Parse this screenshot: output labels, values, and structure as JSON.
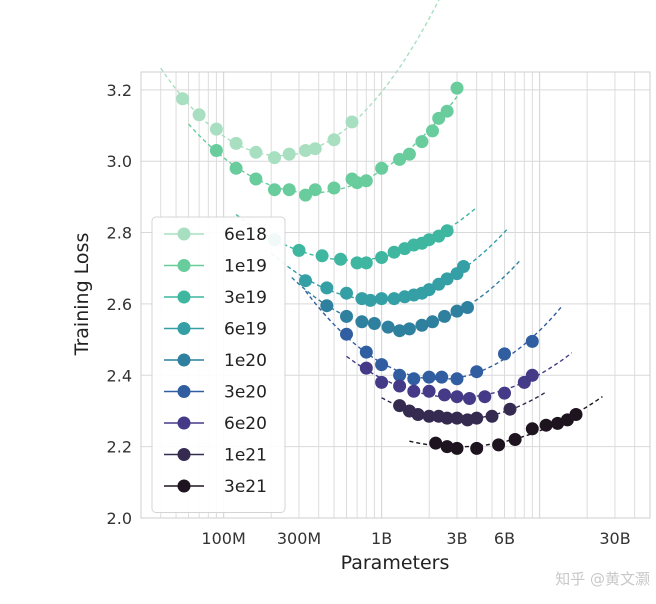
{
  "chart_data": {
    "type": "scatter",
    "title": "",
    "xlabel": "Parameters",
    "ylabel": "Training Loss",
    "xscale": "log",
    "xlim": [
      30000000,
      50000000000
    ],
    "ylim": [
      2.0,
      3.25
    ],
    "x_ticks": [
      {
        "value": 100000000,
        "label": "100M"
      },
      {
        "value": 300000000,
        "label": "300M"
      },
      {
        "value": 1000000000,
        "label": "1B"
      },
      {
        "value": 3000000000,
        "label": "3B"
      },
      {
        "value": 6000000000,
        "label": "6B"
      },
      {
        "value": 30000000000,
        "label": "30B"
      }
    ],
    "y_ticks": [
      {
        "value": 2.0,
        "label": "2.0"
      },
      {
        "value": 2.2,
        "label": "2.2"
      },
      {
        "value": 2.4,
        "label": "2.4"
      },
      {
        "value": 2.6,
        "label": "2.6"
      },
      {
        "value": 2.8,
        "label": "2.8"
      },
      {
        "value": 3.0,
        "label": "3.0"
      },
      {
        "value": 3.2,
        "label": "3.2"
      }
    ],
    "grid": true,
    "legend_position": "left",
    "series": [
      {
        "name": "6e18",
        "color": "#a8dfc0",
        "fit": [
          40000000,
          3200000000
        ],
        "x": [
          55000000,
          70000000,
          90000000,
          120000000,
          160000000,
          210000000,
          260000000,
          330000000,
          380000000,
          500000000,
          650000000
        ],
        "y": [
          3.175,
          3.13,
          3.09,
          3.05,
          3.025,
          3.01,
          3.02,
          3.03,
          3.035,
          3.06,
          3.11
        ]
      },
      {
        "name": "1e19",
        "color": "#68cc9c",
        "fit": [
          60000000,
          3100000000
        ],
        "x": [
          90000000,
          120000000,
          160000000,
          210000000,
          260000000,
          330000000,
          380000000,
          500000000,
          650000000,
          700000000,
          800000000,
          1000000000,
          1300000000,
          1500000000,
          1800000000,
          2100000000,
          2300000000,
          2600000000,
          3000000000
        ],
        "y": [
          3.03,
          2.98,
          2.95,
          2.92,
          2.92,
          2.905,
          2.92,
          2.925,
          2.95,
          2.94,
          2.945,
          2.98,
          3.005,
          3.02,
          3.055,
          3.085,
          3.12,
          3.14,
          3.205
        ]
      },
      {
        "name": "3e19",
        "color": "#3fb6a0",
        "fit": [
          120000000,
          3900000000
        ],
        "x": [
          210000000,
          300000000,
          420000000,
          550000000,
          700000000,
          800000000,
          1000000000,
          1200000000,
          1400000000,
          1600000000,
          1800000000,
          2000000000,
          2300000000,
          2600000000
        ],
        "y": [
          2.78,
          2.75,
          2.735,
          2.725,
          2.715,
          2.715,
          2.73,
          2.745,
          2.755,
          2.765,
          2.77,
          2.78,
          2.79,
          2.805
        ]
      },
      {
        "name": "6e19",
        "color": "#349fa5",
        "fit": [
          200000000,
          6200000000
        ],
        "x": [
          330000000,
          450000000,
          600000000,
          750000000,
          850000000,
          1000000000,
          1200000000,
          1400000000,
          1600000000,
          1800000000,
          2000000000,
          2300000000,
          2600000000,
          3000000000,
          3300000000
        ],
        "y": [
          2.665,
          2.645,
          2.63,
          2.615,
          2.61,
          2.615,
          2.615,
          2.62,
          2.625,
          2.63,
          2.64,
          2.655,
          2.67,
          2.685,
          2.705
        ]
      },
      {
        "name": "1e20",
        "color": "#2f7f9e",
        "fit": [
          270000000,
          7500000000
        ],
        "x": [
          450000000,
          600000000,
          750000000,
          900000000,
          1100000000,
          1300000000,
          1500000000,
          1800000000,
          2100000000,
          2500000000,
          3000000000,
          3500000000
        ],
        "y": [
          2.595,
          2.565,
          2.55,
          2.545,
          2.535,
          2.525,
          2.53,
          2.54,
          2.55,
          2.565,
          2.58,
          2.59
        ]
      },
      {
        "name": "3e20",
        "color": "#315ea0",
        "fit": [
          330000000,
          14000000000
        ],
        "x": [
          600000000,
          800000000,
          1000000000,
          1300000000,
          1600000000,
          2000000000,
          2400000000,
          3000000000,
          4000000000,
          6000000000,
          9000000000
        ],
        "y": [
          2.515,
          2.465,
          2.43,
          2.4,
          2.39,
          2.395,
          2.395,
          2.39,
          2.41,
          2.46,
          2.495
        ]
      },
      {
        "name": "6e20",
        "color": "#453a87",
        "fit": [
          600000000,
          16000000000
        ],
        "x": [
          800000000,
          1000000000,
          1300000000,
          1600000000,
          2000000000,
          2500000000,
          3000000000,
          3600000000,
          4500000000,
          6000000000,
          8000000000,
          9000000000
        ],
        "y": [
          2.42,
          2.38,
          2.37,
          2.355,
          2.355,
          2.345,
          2.34,
          2.335,
          2.34,
          2.35,
          2.38,
          2.4
        ]
      },
      {
        "name": "1e21",
        "color": "#352a4f",
        "fit": [
          1000000000,
          11000000000
        ],
        "x": [
          1300000000,
          1500000000,
          1700000000,
          2000000000,
          2300000000,
          2600000000,
          3000000000,
          3500000000,
          4000000000,
          5000000000,
          6500000000
        ],
        "y": [
          2.315,
          2.3,
          2.29,
          2.285,
          2.285,
          2.28,
          2.28,
          2.275,
          2.28,
          2.285,
          2.305
        ]
      },
      {
        "name": "3e21",
        "color": "#1e1420",
        "fit": [
          1500000000,
          25000000000
        ],
        "x": [
          2200000000,
          2600000000,
          3000000000,
          4000000000,
          5500000000,
          7000000000,
          9000000000,
          11000000000,
          13000000000,
          15000000000,
          17000000000
        ],
        "y": [
          2.21,
          2.2,
          2.195,
          2.195,
          2.205,
          2.22,
          2.25,
          2.26,
          2.265,
          2.275,
          2.29
        ]
      }
    ]
  },
  "watermark": "知乎 @黄文灏"
}
